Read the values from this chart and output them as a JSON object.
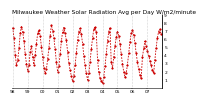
{
  "title": "Milwaukee Weather Solar Radiation Avg per Day W/m2/minute",
  "bg_color": "#ffffff",
  "line_color": "#cc0000",
  "grid_color": "#888888",
  "ylim": [
    0,
    9
  ],
  "yticks": [
    1,
    2,
    3,
    4,
    5,
    6,
    7,
    8,
    9
  ],
  "values": [
    7.5,
    6.2,
    4.1,
    2.8,
    3.5,
    4.9,
    6.8,
    7.6,
    6.9,
    5.8,
    4.2,
    3.0,
    2.1,
    2.8,
    4.5,
    5.2,
    3.8,
    2.9,
    4.1,
    5.5,
    6.8,
    7.2,
    6.5,
    5.1,
    3.8,
    2.5,
    1.8,
    2.3,
    3.6,
    5.0,
    6.5,
    7.8,
    7.1,
    6.2,
    4.8,
    3.2,
    2.0,
    2.7,
    4.2,
    5.8,
    7.0,
    7.5,
    6.8,
    5.9,
    4.5,
    3.1,
    2.2,
    1.5,
    0.8,
    1.5,
    2.8,
    4.3,
    5.9,
    7.0,
    7.4,
    6.7,
    5.5,
    4.0,
    2.8,
    1.8,
    1.0,
    1.8,
    3.2,
    4.8,
    6.2,
    7.3,
    7.6,
    6.9,
    3.5,
    2.0,
    1.2,
    0.9,
    0.6,
    1.4,
    2.7,
    4.2,
    5.8,
    7.0,
    7.5,
    3.2,
    2.5,
    3.8,
    5.2,
    6.3,
    7.0,
    6.5,
    5.5,
    4.2,
    3.0,
    2.0,
    1.3,
    1.8,
    2.9,
    4.3,
    5.7,
    6.8,
    7.2,
    6.6,
    5.6,
    4.3,
    3.2,
    2.3,
    1.6,
    1.2,
    3.8,
    4.9,
    5.8,
    5.2,
    4.6,
    4.0,
    3.4,
    2.8,
    2.2,
    1.8,
    3.5,
    5.0,
    6.2,
    7.0,
    7.3,
    6.7
  ],
  "x_tick_interval": 12,
  "x_labels": [
    "98",
    "99",
    "00",
    "01",
    "02",
    "03",
    "04",
    "05",
    "06",
    "07",
    "08",
    "09"
  ],
  "title_fontsize": 4.2,
  "tick_fontsize": 3.2,
  "linewidth": 0.6,
  "markersize": 1.2
}
